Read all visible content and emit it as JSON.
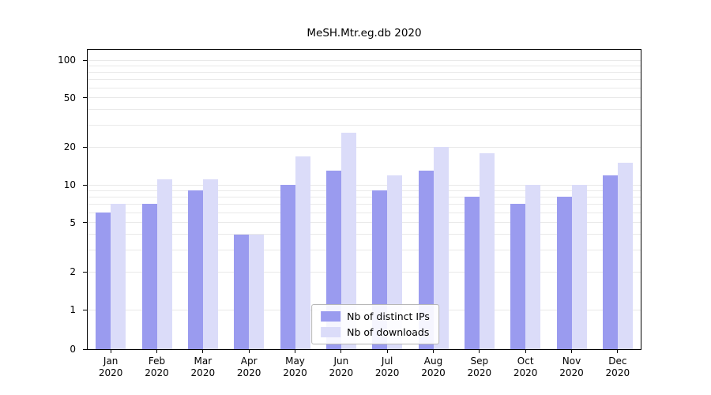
{
  "chart_data": {
    "type": "bar",
    "title": "MeSH.Mtr.eg.db 2020",
    "categories": [
      "Jan 2020",
      "Feb 2020",
      "Mar 2020",
      "Apr 2020",
      "May 2020",
      "Jun 2020",
      "Jul 2020",
      "Aug 2020",
      "Sep 2020",
      "Oct 2020",
      "Nov 2020",
      "Dec 2020"
    ],
    "series": [
      {
        "name": "Nb of distinct IPs",
        "color": "#9a9bef",
        "values": [
          6,
          7,
          9,
          4,
          10,
          13,
          9,
          13,
          8,
          7,
          8,
          12
        ]
      },
      {
        "name": "Nb of downloads",
        "color": "#dbdcf9",
        "values": [
          7,
          11,
          11,
          4,
          17,
          26,
          12,
          20,
          18,
          10,
          10,
          15
        ]
      }
    ],
    "y_ticks": [
      0,
      1,
      2,
      5,
      10,
      20,
      50,
      100
    ],
    "y_gridline_values": [
      1,
      2,
      3,
      4,
      5,
      6,
      7,
      8,
      9,
      10,
      20,
      30,
      40,
      50,
      60,
      70,
      80,
      90,
      100
    ],
    "y_scale": "symlog",
    "ylim": [
      0,
      130
    ],
    "grid": true,
    "legend_position": "lower center inside",
    "gridline_color": "#e9e9e9",
    "axis_color": "#000000"
  }
}
